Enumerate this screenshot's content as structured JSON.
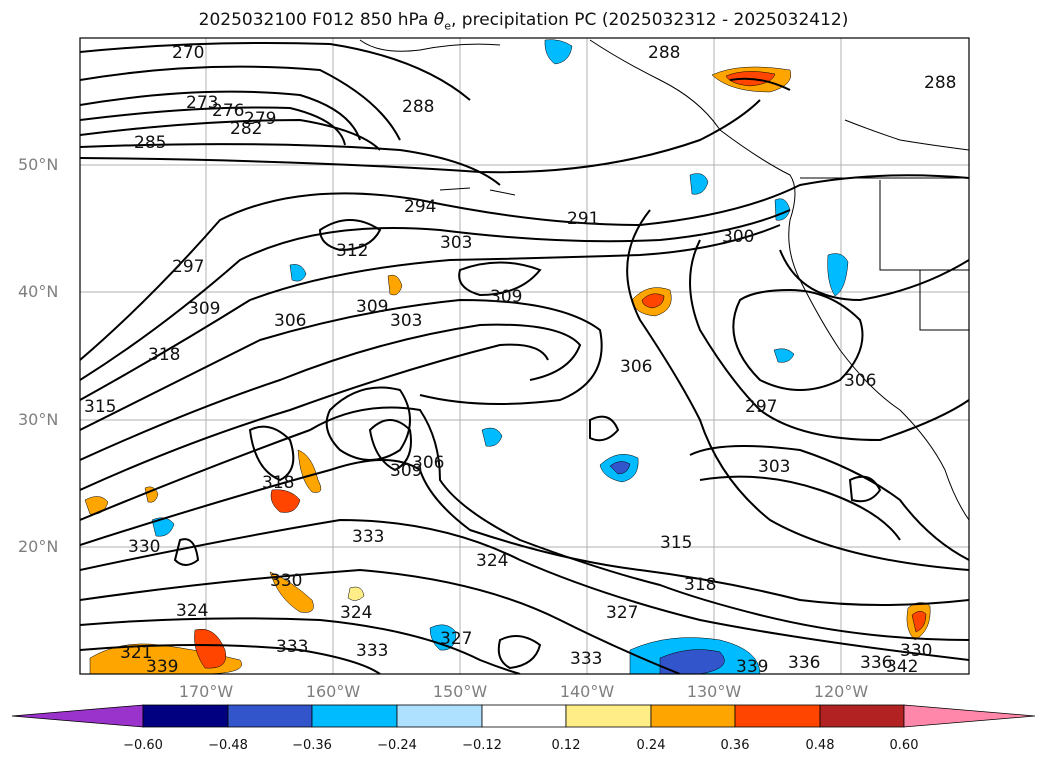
{
  "title": {
    "run": "2025032100",
    "forecast": "F012",
    "level": "850 hPa",
    "field_symbol": "θ",
    "field_subscript": "e",
    "overlay": ", precipitation PC (2025032312 - 2025032412)"
  },
  "axes": {
    "lat_labels": [
      "50°N",
      "40°N",
      "30°N",
      "20°N"
    ],
    "lon_labels": [
      "170°W",
      "160°W",
      "150°W",
      "140°W",
      "130°W",
      "120°W"
    ]
  },
  "contour_labels": [
    "270",
    "273",
    "276",
    "279",
    "282",
    "285",
    "288",
    "288",
    "288",
    "291",
    "294",
    "297",
    "297",
    "300",
    "303",
    "303",
    "303",
    "306",
    "306",
    "306",
    "306",
    "309",
    "309",
    "309",
    "309",
    "312",
    "315",
    "315",
    "318",
    "318",
    "318",
    "321",
    "324",
    "324",
    "324",
    "327",
    "327",
    "330",
    "330",
    "330",
    "333",
    "333",
    "333",
    "333",
    "336",
    "336",
    "339",
    "339",
    "342"
  ],
  "colorbar": {
    "ticks": [
      "−0.60",
      "−0.48",
      "−0.36",
      "−0.24",
      "−0.12",
      "0.12",
      "0.24",
      "0.36",
      "0.48",
      "0.60"
    ],
    "colors": [
      "#9933cc",
      "#000080",
      "#3355cc",
      "#00bbff",
      "#aee0ff",
      "#ffffff",
      "#ffee88",
      "#ffa500",
      "#ff4500",
      "#b22222",
      "#ff88aa"
    ]
  }
}
